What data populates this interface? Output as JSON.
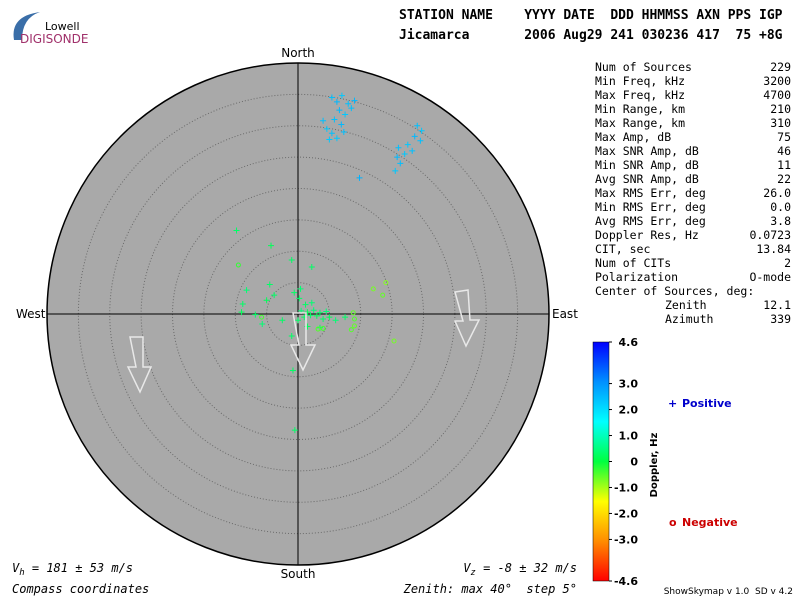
{
  "logo": {
    "brand": "Lowell",
    "product": "DIGISONDE"
  },
  "header": {
    "columns": "STATION NAME    YYYY DATE  DDD HHMMSS AXN PPS IGP",
    "values": "Jicamarca       2006 Aug29 241 030236 417  75 +8G"
  },
  "stats": [
    {
      "label": "Num of Sources",
      "value": "229"
    },
    {
      "label": "Min Freq, kHz",
      "value": "3200"
    },
    {
      "label": "Max Freq, kHz",
      "value": "4700"
    },
    {
      "label": "Min Range, km",
      "value": "210"
    },
    {
      "label": "Max Range, km",
      "value": "310"
    },
    {
      "label": "Max Amp, dB",
      "value": "75"
    },
    {
      "label": "Max SNR Amp, dB",
      "value": "46"
    },
    {
      "label": "Min SNR Amp, dB",
      "value": "11"
    },
    {
      "label": "Avg SNR Amp, dB",
      "value": "22"
    },
    {
      "label": "Max RMS Err, deg",
      "value": "26.0"
    },
    {
      "label": "Min RMS Err, deg",
      "value": "0.0"
    },
    {
      "label": "Avg RMS Err, deg",
      "value": "3.8"
    },
    {
      "label": "Doppler Res, Hz",
      "value": "0.0723"
    },
    {
      "label": "CIT, sec",
      "value": "13.84"
    },
    {
      "label": "Num of CITs",
      "value": "2"
    },
    {
      "label": "Polarization",
      "value": "O-mode"
    }
  ],
  "center_of_sources": {
    "title": "Center of Sources, deg:",
    "rows": [
      {
        "label": "Zenith",
        "value": "12.1"
      },
      {
        "label": "Azimuth",
        "value": "339"
      }
    ]
  },
  "chart_data": {
    "type": "scatter",
    "directions": {
      "north": "North",
      "south": "South",
      "east": "East",
      "west": "West"
    },
    "xlim": [
      -40,
      40
    ],
    "ylim": [
      -40,
      40
    ],
    "ring_step": 5,
    "x": [
      5.4,
      6.2,
      7.0,
      8.0,
      6.6,
      7.5,
      5.8,
      8.5,
      6.9,
      4.6,
      5.4,
      6.2,
      7.3,
      9.0,
      4.0,
      5.0,
      19.0,
      19.7,
      18.6,
      19.5,
      17.5,
      16.0,
      15.8,
      17.0,
      16.3,
      15.5,
      18.2,
      9.8,
      0,
      0.5,
      1,
      1.5,
      2,
      2.5,
      3,
      3.5,
      4,
      4.5,
      5,
      1.2,
      2.2,
      0.2,
      -0.6,
      0.4,
      -4.5,
      -5.0,
      -3.8,
      -8.2,
      -8.8,
      -9.0,
      -6.8,
      -5.7,
      -2.5,
      -1.0,
      1.5,
      3.5,
      6.0,
      7.5,
      -0.8,
      -0.5,
      -9.8,
      -4.3,
      -1.0,
      2.2,
      8.8,
      9.0,
      12.0,
      14.0,
      13.5,
      8.5,
      15.3,
      9.0,
      4.0,
      3.2,
      -9.5,
      -5.8
    ],
    "y": [
      34.5,
      33.8,
      34.8,
      33.5,
      32.5,
      31.8,
      31.0,
      32.8,
      30.2,
      29.5,
      28.8,
      28.0,
      29.0,
      34.0,
      30.8,
      27.8,
      30.0,
      29.2,
      28.3,
      27.6,
      27.0,
      26.5,
      25.0,
      25.5,
      24.0,
      22.8,
      26.0,
      21.7,
      -1,
      0.5,
      -0.5,
      0.3,
      -0.2,
      0.6,
      -0.3,
      0.2,
      -0.8,
      0.4,
      -0.5,
      1.5,
      1.8,
      2.5,
      3.4,
      4.0,
      4.7,
      2.2,
      3.0,
      3.8,
      1.6,
      0.3,
      -0.1,
      -1.6,
      -1.0,
      -3.5,
      -2.0,
      -2.2,
      -1.0,
      -0.5,
      -9.0,
      -18.5,
      13.3,
      10.9,
      8.6,
      7.5,
      0.2,
      -0.8,
      4.0,
      5.0,
      3.0,
      -2.5,
      -4.3,
      -1.9,
      -2.3,
      -2.4,
      7.8,
      -0.5
    ],
    "doppler": [
      2.4,
      2.5,
      2.3,
      2.4,
      2.5,
      2.3,
      2.4,
      2.4,
      2.5,
      2.3,
      2.4,
      2.3,
      2.4,
      2.5,
      2.4,
      2.3,
      2.4,
      2.3,
      2.5,
      2.4,
      2.3,
      2.4,
      2.5,
      2.3,
      2.4,
      2.3,
      2.4,
      2.6,
      0.3,
      0.4,
      0.3,
      0.2,
      0.3,
      0.4,
      0.2,
      0.3,
      0.3,
      0.4,
      0.2,
      0.3,
      0.4,
      0.3,
      0.3,
      0.4,
      0.3,
      0.2,
      0.3,
      0.4,
      0.3,
      0.2,
      0.3,
      0.4,
      0.3,
      0.3,
      0.2,
      0.3,
      0.4,
      0.3,
      0.3,
      0.3,
      0.3,
      0.2,
      0.3,
      0.3,
      -0.6,
      -0.5,
      -0.7,
      -0.8,
      -0.6,
      -0.5,
      -0.7,
      -0.6,
      -0.4,
      -0.5,
      -0.3,
      -0.4
    ],
    "clim": [
      -4.6,
      4.6
    ],
    "colormap": [
      "#ff0000",
      "#ff8c00",
      "#ffff00",
      "#00ff40",
      "#00ffff",
      "#0090ff",
      "#0000ff"
    ],
    "cticks": [
      4.6,
      {
        "value": 3,
        "label": "3.0"
      },
      {
        "value": 2,
        "label": "2.0"
      },
      {
        "value": 1,
        "label": "1.0"
      },
      0,
      {
        "value": -1,
        "label": "-1.0"
      },
      {
        "value": -2,
        "label": "-2.0"
      },
      {
        "value": -3,
        "label": "-3.0"
      },
      -4.6
    ],
    "colorbar_label": "Doppler, Hz",
    "legend": {
      "positive_marker": "+",
      "positive": "Positive",
      "negative_marker": "o",
      "negative": "Negative",
      "positive_color": "#0000cc",
      "negative_color": "#cc0000"
    },
    "vh": {
      "symbol": "V",
      "sub": "h",
      "text": " = 181 ± 53 m/s"
    },
    "vz": {
      "symbol": "V",
      "sub": "z",
      "text": " = -8 ± 32 m/s"
    },
    "coordinates": "Compass coordinates",
    "zenith_note": "Zenith: max 40°  step 5°",
    "version": "ShowSkymap v 1.0  SD v 4.2"
  }
}
